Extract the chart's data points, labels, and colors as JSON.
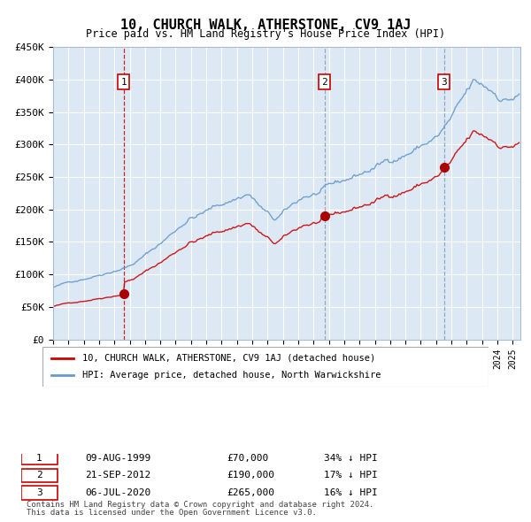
{
  "title": "10, CHURCH WALK, ATHERSTONE, CV9 1AJ",
  "subtitle": "Price paid vs. HM Land Registry's House Price Index (HPI)",
  "legend_property": "10, CHURCH WALK, ATHERSTONE, CV9 1AJ (detached house)",
  "legend_hpi": "HPI: Average price, detached house, North Warwickshire",
  "footer1": "Contains HM Land Registry data © Crown copyright and database right 2024.",
  "footer2": "This data is licensed under the Open Government Licence v3.0.",
  "purchases": [
    {
      "num": 1,
      "date_str": "09-AUG-1999",
      "year": 1999.6,
      "price": 70000,
      "note": "34% ↓ HPI",
      "vline_style": "red"
    },
    {
      "num": 2,
      "date_str": "21-SEP-2012",
      "year": 2012.72,
      "price": 190000,
      "note": "17% ↓ HPI",
      "vline_style": "grey"
    },
    {
      "num": 3,
      "date_str": "06-JUL-2020",
      "year": 2020.51,
      "price": 265000,
      "note": "16% ↓ HPI",
      "vline_style": "grey"
    }
  ],
  "ylim": [
    0,
    450000
  ],
  "xlim": [
    1995.0,
    2025.5
  ],
  "yticks": [
    0,
    50000,
    100000,
    150000,
    200000,
    250000,
    300000,
    350000,
    400000,
    450000
  ],
  "ytick_labels": [
    "£0",
    "£50K",
    "£100K",
    "£150K",
    "£200K",
    "£250K",
    "£300K",
    "£350K",
    "£400K",
    "£450K"
  ],
  "bg_color": "#dce9f5",
  "grid_color": "#ffffff",
  "line_color_property": "#cc0000",
  "line_color_hpi": "#6699cc",
  "dot_color": "#aa0000"
}
